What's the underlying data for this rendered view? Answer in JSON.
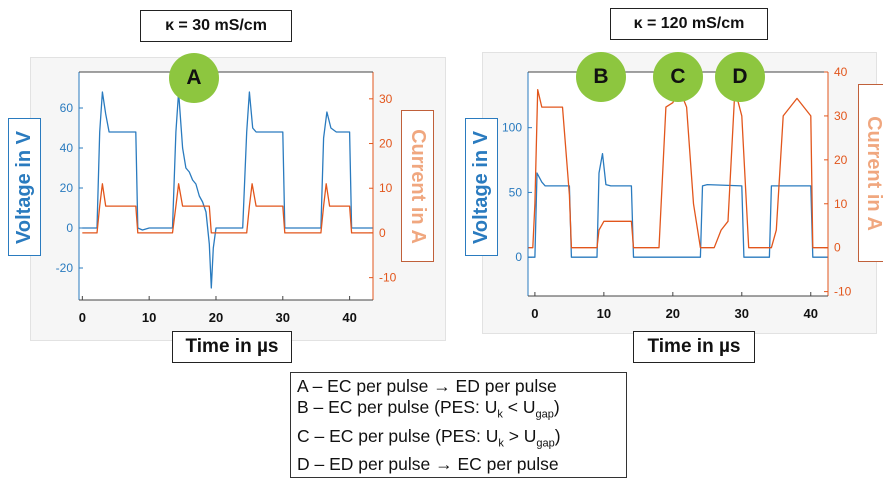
{
  "colors": {
    "voltage": "#2a7bbf",
    "current": "#e2561c",
    "circle": "#8dc63f",
    "current_label": "#f0a77f"
  },
  "chart_data": [
    {
      "type": "line",
      "title": "κ = 30 mS/cm",
      "xlabel": "Time in µs",
      "ylabel_left": "Voltage in V",
      "ylabel_right": "Current in A",
      "xlim": [
        -0.5,
        43.5
      ],
      "ylim_left": [
        -36,
        78
      ],
      "ylim_right": [
        -15,
        36
      ],
      "xticks": [
        0,
        10,
        20,
        30,
        40
      ],
      "yticks_left": [
        -20,
        0,
        20,
        40,
        60
      ],
      "yticks_right": [
        -10,
        0,
        10,
        20,
        30
      ],
      "markers": [
        {
          "label": "A",
          "x": 20
        }
      ],
      "series": [
        {
          "axis": "left",
          "x": [
            0,
            2.2,
            2.6,
            3,
            3.5,
            4,
            5,
            8,
            8.3,
            9,
            10,
            12,
            13.5,
            14,
            14.4,
            15,
            15.5,
            16,
            16.5,
            17,
            17.5,
            18,
            18.5,
            19,
            19.3,
            19.6,
            20,
            22,
            24,
            24.6,
            25,
            25.5,
            26,
            27,
            30,
            30.3,
            31,
            34,
            35.7,
            36.1,
            36.6,
            37.2,
            38,
            40,
            40.3,
            41,
            43.5
          ],
          "y": [
            0,
            0,
            48,
            68,
            57,
            48,
            48,
            48,
            0,
            -1,
            0,
            0,
            0,
            48,
            68,
            40,
            30,
            28,
            24,
            22,
            16,
            13,
            8,
            -8,
            -30,
            -10,
            0,
            0,
            0,
            48,
            68,
            50,
            48,
            48,
            48,
            0,
            0,
            0,
            0,
            45,
            58,
            50,
            48,
            48,
            0,
            0,
            0
          ]
        },
        {
          "axis": "right",
          "x": [
            0,
            2.2,
            2.6,
            3,
            3.5,
            4,
            8,
            8.3,
            10,
            13.5,
            14,
            14.4,
            15,
            16,
            19,
            19.3,
            20,
            24.6,
            25,
            25.4,
            26,
            30,
            30.3,
            35.7,
            36.1,
            36.5,
            37,
            40,
            40.3,
            43.5
          ],
          "y": [
            0,
            0,
            6,
            11,
            6,
            6,
            6,
            0,
            0,
            0,
            6,
            11,
            6,
            6,
            6,
            0,
            0,
            0,
            6,
            11,
            6,
            6,
            0,
            0,
            6,
            11,
            6,
            6,
            0,
            0
          ]
        }
      ]
    },
    {
      "type": "line",
      "title": "κ = 120 mS/cm",
      "xlabel": "Time in µs",
      "ylabel_left": "Voltage in V",
      "ylabel_right": "Current in A",
      "xlim": [
        -1,
        42.5
      ],
      "ylim_left": [
        -30,
        143
      ],
      "ylim_right": [
        -11,
        40
      ],
      "xticks": [
        0,
        10,
        20,
        30,
        40
      ],
      "yticks_left": [
        0,
        50,
        100
      ],
      "yticks_right": [
        -10,
        0,
        10,
        20,
        30,
        40
      ],
      "markers": [
        {
          "label": "B",
          "x": 8.5
        },
        {
          "label": "C",
          "x": 19.8
        },
        {
          "label": "D",
          "x": 28.5
        }
      ],
      "series": [
        {
          "axis": "left",
          "x": [
            -1,
            0,
            0.3,
            1,
            1.5,
            2,
            5,
            5.3,
            6,
            9,
            9.3,
            9.8,
            10.3,
            11,
            14,
            14.3,
            15,
            20,
            20.3,
            21,
            24,
            24.3,
            25,
            30,
            30.3,
            31,
            34,
            34.3,
            35,
            40,
            40.3,
            42.5
          ],
          "y": [
            0,
            0,
            65,
            58,
            55,
            55,
            55,
            0,
            0,
            0,
            65,
            80,
            56,
            55,
            55,
            0,
            0,
            0,
            0,
            0,
            0,
            55,
            56,
            55,
            0,
            0,
            0,
            55,
            55,
            55,
            0,
            0
          ]
        },
        {
          "axis": "right",
          "x": [
            -1,
            -0.3,
            0,
            0.4,
            1,
            3,
            4,
            5,
            5.3,
            6,
            8,
            9,
            9.3,
            10,
            12,
            14,
            14.3,
            15,
            18,
            19,
            20,
            21,
            22,
            23,
            24,
            24.3,
            26,
            27,
            28,
            29,
            30,
            31,
            34,
            34.3,
            35,
            36,
            37,
            38,
            39,
            40,
            40.3,
            42.5
          ],
          "y": [
            0,
            0,
            10,
            36,
            32,
            32,
            32,
            12,
            0,
            0,
            0,
            0,
            4,
            6,
            6,
            6,
            0,
            0,
            0,
            32,
            33,
            36,
            32,
            10,
            0,
            0,
            0,
            4,
            6,
            36,
            30,
            0,
            0,
            0,
            4,
            30,
            32,
            34,
            32,
            30,
            0,
            0
          ]
        }
      ]
    }
  ],
  "legend_lines": [
    "A – EC per pulse → ED per pulse",
    "B – EC per pulse (PES: U",
    "C – EC per pulse (PES: U",
    "D – ED per pulse → EC per pulse"
  ],
  "legend_sub": {
    "k": "k",
    "gap": "gap",
    "lt": " < U",
    "gt": " > U",
    "close": ")"
  }
}
